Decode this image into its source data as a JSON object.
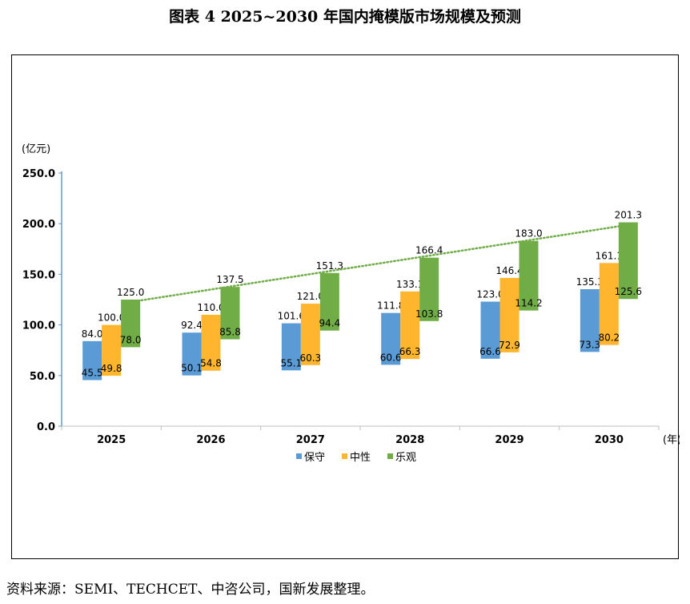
{
  "title": "图表 4  2025~2030 年国内掩模版市场规模及预测",
  "source": "资料来源：SEMI、TECHCET、中咨公司，国新发展整理。",
  "colors": {
    "保守": "#5b9bd5",
    "中性": "#ffb52e",
    "乐观": "#70ad47",
    "trend": "#70ad47"
  },
  "chart_data": {
    "type": "bar",
    "title": "",
    "ylabel": "(亿元)",
    "xlabel": "(年)",
    "ylim": [
      0,
      250
    ],
    "yticks": [
      "0.0",
      "50.0",
      "100.0",
      "150.0",
      "200.0",
      "250.0"
    ],
    "categories": [
      "2025",
      "2026",
      "2027",
      "2028",
      "2029",
      "2030"
    ],
    "legend_position": "bottom-center",
    "grid": false,
    "series": [
      {
        "name": "保守",
        "low": [
          45.5,
          50.1,
          55.1,
          60.6,
          66.6,
          73.3
        ],
        "high": [
          84.0,
          92.4,
          101.6,
          111.8,
          123.0,
          135.3
        ]
      },
      {
        "name": "中性",
        "low": [
          49.8,
          54.8,
          60.3,
          66.3,
          72.9,
          80.2
        ],
        "high": [
          100.0,
          110.0,
          121.0,
          133.1,
          146.4,
          161.1
        ]
      },
      {
        "name": "乐观",
        "low": [
          78.0,
          85.8,
          94.4,
          103.8,
          114.2,
          125.6
        ],
        "high": [
          125.0,
          137.5,
          151.3,
          166.4,
          183.0,
          201.3
        ]
      }
    ],
    "trendline": {
      "series": "乐观",
      "style": "dotted"
    }
  }
}
